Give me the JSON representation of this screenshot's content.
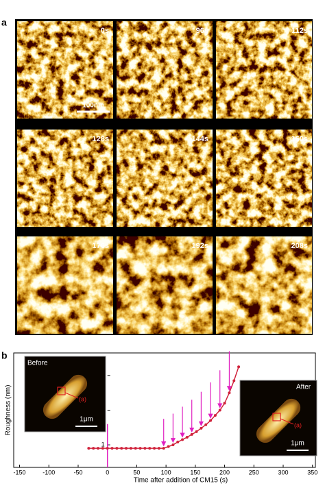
{
  "panel_a": {
    "label": "a",
    "scale_bar": "100nm",
    "frames": [
      "0s",
      "96s",
      "112s",
      "128s",
      "144s",
      "160s",
      "176s",
      "192s",
      "208s"
    ]
  },
  "panel_b": {
    "label": "b",
    "before": {
      "title": "Before",
      "marker": "(a)",
      "scale_bar": "1μm"
    },
    "after": {
      "title": "After",
      "marker": "(a)",
      "scale_bar": "1μm"
    }
  },
  "chart_data": {
    "type": "line",
    "x_label": "Time after addition of CM15 (s)",
    "y_label": "Roughness (nm)",
    "x": [
      -32,
      -24,
      -16,
      -8,
      0,
      8,
      16,
      24,
      32,
      40,
      48,
      56,
      64,
      72,
      80,
      88,
      96,
      104,
      112,
      120,
      128,
      136,
      144,
      152,
      160,
      168,
      176,
      184,
      192,
      200,
      208,
      216,
      224
    ],
    "series": [
      {
        "name": "Roughness",
        "color": "#d0213a",
        "values": [
          0.9,
          0.9,
          0.9,
          0.9,
          0.9,
          0.9,
          0.9,
          0.9,
          0.9,
          0.9,
          0.9,
          0.9,
          0.9,
          0.9,
          0.9,
          0.9,
          0.9,
          0.95,
          1.0,
          1.08,
          1.15,
          1.22,
          1.3,
          1.38,
          1.48,
          1.58,
          1.7,
          1.85,
          2.0,
          2.2,
          2.5,
          2.85,
          3.25
        ]
      }
    ],
    "xlim": [
      -160,
      355
    ],
    "ylim": [
      0.35,
      3.65
    ],
    "xticks": [
      -150,
      -100,
      -50,
      0,
      50,
      100,
      150,
      200,
      250,
      300,
      350
    ],
    "yticks": [
      1,
      2,
      3
    ],
    "addition_x": 0,
    "arrows_x": [
      96,
      112,
      128,
      144,
      160,
      176,
      192,
      208
    ],
    "arrow_color": "#e020c0"
  }
}
